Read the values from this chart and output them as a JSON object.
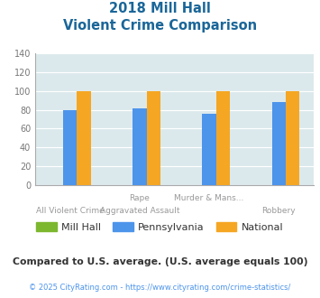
{
  "title_line1": "2018 Mill Hall",
  "title_line2": "Violent Crime Comparison",
  "cat_line1": [
    "",
    "Rape",
    "Murder & Mans...",
    ""
  ],
  "cat_line2": [
    "All Violent Crime",
    "Aggravated Assault",
    "",
    "Robbery"
  ],
  "mill_hall": [
    0,
    0,
    0,
    0
  ],
  "pennsylvania": [
    80,
    82,
    76,
    88
  ],
  "national": [
    100,
    100,
    100,
    100
  ],
  "mill_hall_color": "#7db72f",
  "pennsylvania_color": "#4d94eb",
  "national_color": "#f5a623",
  "ylim": [
    0,
    140
  ],
  "yticks": [
    0,
    20,
    40,
    60,
    80,
    100,
    120,
    140
  ],
  "plot_bg": "#dce9ec",
  "title_color": "#1a6699",
  "footer_text": "Compared to U.S. average. (U.S. average equals 100)",
  "credit_text": "© 2025 CityRating.com - https://www.cityrating.com/crime-statistics/",
  "footer_color": "#333333",
  "credit_color": "#4d94eb"
}
